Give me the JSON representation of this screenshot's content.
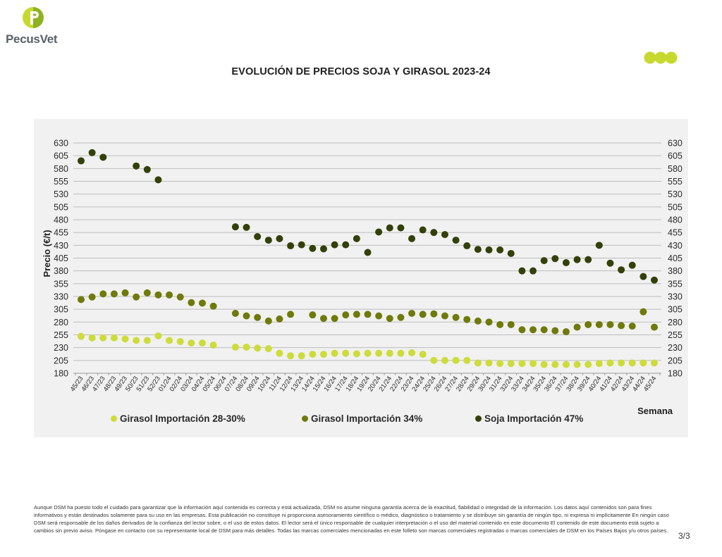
{
  "header": {
    "brand": "PecusVet",
    "brand_color": "#a5c21f",
    "accent_dots_color": "#c7d92f"
  },
  "page": {
    "title": "EVOLUCIÓN DE PRECIOS SOJA Y GIRASOL 2023-24",
    "page_number": "3/3",
    "disclaimer": "Aunque DSM ha puesto todo el cuidado para garantizar que la información aquí contenida es correcta y está actualizada, DSM no asume ninguna garantía acerca de la exactitud, fiabilidad o integridad de la información. Los datos aquí contenidos son para fines informativos y están destinados solamente para su uso en las empresas. Esta publicación no constituye ni proporciona asesoramiento científico o médico, diagnóstico o tratamiento y se distribuye sin garantía de ningún tipo, ni expresa ni implícitamente En ningún caso DSM será responsable de los daños derivados de la confianza del lector sobre, o el uso de estos datos. El lector será el único responsable de cualquier interpretación o el uso del material contenido en este documento El contenido de este documento está sujeto a cambios sin previo aviso. Póngase en contacto con su representante local de DSM para más detalles. Todas las marcas comerciales mencionadas en este folleto son marcas comerciales registradas o marcas comerciales de DSM en los Países Bajos y/u otros países."
  },
  "chart_data": {
    "type": "scatter",
    "title": "EVOLUCIÓN DE PRECIOS SOJA Y GIRASOL 2023-24",
    "xlabel": "Semana",
    "ylabel": "Precio (€/t)",
    "ylim": [
      180,
      630
    ],
    "yticks": [
      180,
      205,
      230,
      255,
      280,
      305,
      330,
      355,
      380,
      405,
      430,
      455,
      480,
      505,
      530,
      555,
      580,
      605,
      630
    ],
    "grid": true,
    "legend_position": "bottom",
    "categories": [
      "45/23",
      "46/23",
      "47/23",
      "48/23",
      "49/23",
      "50/23",
      "51/23",
      "52/23",
      "01/24",
      "02/24",
      "03/24",
      "04/24",
      "05/24",
      "06/24",
      "07/24",
      "08/24",
      "09/24",
      "10/24",
      "11/24",
      "12/24",
      "13/24",
      "14/24",
      "15/24",
      "16/24",
      "17/24",
      "18/24",
      "19/24",
      "20/24",
      "21/24",
      "22/24",
      "23/24",
      "24/24",
      "25/24",
      "26/24",
      "27/24",
      "28/24",
      "29/24",
      "30/24",
      "31/24",
      "32/24",
      "33/24",
      "34/24",
      "35/24",
      "36/24",
      "37/24",
      "38/24",
      "39/24",
      "40/24",
      "41/24",
      "42/24",
      "43/24",
      "44/24",
      "45/24"
    ],
    "series": [
      {
        "name": "Girasol Importación 28-30%",
        "color": "#cddc39",
        "values": [
          252,
          249,
          249,
          249,
          247,
          244,
          244,
          253,
          244,
          242,
          239,
          239,
          235,
          null,
          231,
          231,
          229,
          228,
          219,
          214,
          214,
          217,
          217,
          219,
          219,
          218,
          219,
          219,
          219,
          219,
          220,
          217,
          205,
          205,
          205,
          205,
          200,
          200,
          199,
          199,
          199,
          199,
          197,
          197,
          197,
          197,
          197,
          199,
          200,
          200,
          200,
          200,
          200
        ]
      },
      {
        "name": "Girasol Importación 34%",
        "color": "#6f7a0a",
        "values": [
          324,
          329,
          335,
          335,
          337,
          329,
          337,
          333,
          333,
          329,
          318,
          317,
          311,
          null,
          297,
          292,
          289,
          282,
          286,
          295,
          null,
          294,
          287,
          287,
          294,
          295,
          295,
          292,
          287,
          289,
          297,
          295,
          296,
          292,
          289,
          285,
          282,
          280,
          275,
          275,
          265,
          265,
          265,
          263,
          261,
          270,
          275,
          275,
          275,
          273,
          272,
          300,
          270
        ]
      },
      {
        "name": "Soja Importación 47%",
        "color": "#33400a",
        "values": [
          595,
          611,
          602,
          null,
          null,
          585,
          578,
          558,
          null,
          null,
          null,
          null,
          null,
          null,
          466,
          465,
          447,
          440,
          443,
          429,
          431,
          424,
          423,
          431,
          431,
          443,
          416,
          456,
          464,
          464,
          443,
          460,
          455,
          451,
          440,
          429,
          422,
          421,
          421,
          414,
          380,
          380,
          400,
          404,
          396,
          402,
          402,
          430,
          395,
          382,
          391,
          369,
          362
        ]
      }
    ]
  }
}
